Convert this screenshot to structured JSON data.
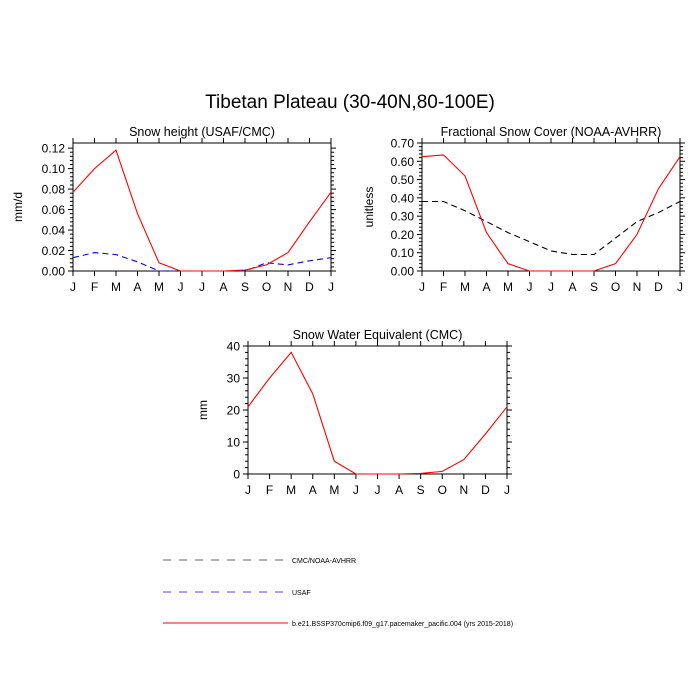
{
  "figure": {
    "title": "Tibetan Plateau (30-40N,80-100E)"
  },
  "legend": {
    "entries": [
      {
        "label": "CMC/NOAA-AVHRR",
        "color": "#000000",
        "dash": "dashed"
      },
      {
        "label": "USAF",
        "color": "#0000ff",
        "dash": "dashed"
      },
      {
        "label": "b.e21.BSSP370cmip6.f09_g17.pacemaker_pacific.004 (yrs 2015-2018)",
        "color": "#ff0000",
        "dash": "solid"
      }
    ]
  },
  "chart_data": [
    {
      "type": "line",
      "title": "Snow height (USAF/CMC)",
      "xlabel": "",
      "ylabel": "mm/d",
      "categories": [
        "J",
        "F",
        "M",
        "A",
        "M",
        "J",
        "J",
        "A",
        "S",
        "O",
        "N",
        "D",
        "J"
      ],
      "ylim": [
        0,
        0.125
      ],
      "yticks": [
        0.0,
        0.02,
        0.04,
        0.06,
        0.08,
        0.1,
        0.12
      ],
      "ytick_labels": [
        "0.00",
        "0.02",
        "0.04",
        "0.06",
        "0.08",
        "0.10",
        "0.12"
      ],
      "series": [
        {
          "name": "USAF",
          "color": "#0000ff",
          "dash": "dashed",
          "values": [
            0.013,
            0.018,
            0.016,
            0.009,
            0.0,
            0.0,
            0.0,
            0.0,
            0.0,
            0.008,
            0.006,
            0.01,
            0.013
          ]
        },
        {
          "name": "b.e21.BSSP370cmip6.f09_g17.pacemaker_pacific.004 (yrs 2015-2018)",
          "color": "#ff0000",
          "dash": "solid",
          "values": [
            0.077,
            0.1,
            0.118,
            0.056,
            0.008,
            0.0,
            0.0,
            0.0,
            0.001,
            0.006,
            0.018,
            0.048,
            0.077
          ]
        }
      ]
    },
    {
      "type": "line",
      "title": "Fractional Snow Cover (NOAA-AVHRR)",
      "xlabel": "",
      "ylabel": "unitless",
      "categories": [
        "J",
        "F",
        "M",
        "A",
        "M",
        "J",
        "J",
        "A",
        "S",
        "O",
        "N",
        "D",
        "J"
      ],
      "ylim": [
        0,
        0.7
      ],
      "yticks": [
        0.0,
        0.1,
        0.2,
        0.3,
        0.4,
        0.5,
        0.6,
        0.7
      ],
      "ytick_labels": [
        "0.00",
        "0.10",
        "0.20",
        "0.30",
        "0.40",
        "0.50",
        "0.60",
        "0.70"
      ],
      "series": [
        {
          "name": "CMC/NOAA-AVHRR",
          "color": "#000000",
          "dash": "dashed",
          "values": [
            0.38,
            0.38,
            0.33,
            0.27,
            0.21,
            0.16,
            0.11,
            0.09,
            0.09,
            0.18,
            0.27,
            0.32,
            0.38
          ]
        },
        {
          "name": "b.e21.BSSP370cmip6.f09_g17.pacemaker_pacific.004 (yrs 2015-2018)",
          "color": "#ff0000",
          "dash": "solid",
          "values": [
            0.625,
            0.635,
            0.52,
            0.21,
            0.04,
            0.0,
            0.0,
            0.0,
            0.0,
            0.04,
            0.2,
            0.45,
            0.625
          ]
        }
      ]
    },
    {
      "type": "line",
      "title": "Snow Water Equivalent (CMC)",
      "xlabel": "",
      "ylabel": "mm",
      "categories": [
        "J",
        "F",
        "M",
        "A",
        "M",
        "J",
        "J",
        "A",
        "S",
        "O",
        "N",
        "D",
        "J"
      ],
      "ylim": [
        0,
        40
      ],
      "yticks": [
        0,
        10,
        20,
        30,
        40
      ],
      "ytick_labels": [
        "0",
        "10",
        "20",
        "30",
        "40"
      ],
      "series": [
        {
          "name": "CMC/NOAA-AVHRR",
          "color": "#000000",
          "dash": "dashed",
          "values": [
            0,
            0,
            0,
            0,
            0,
            0,
            0,
            0,
            0,
            0,
            0,
            0,
            0
          ]
        },
        {
          "name": "b.e21.BSSP370cmip6.f09_g17.pacemaker_pacific.004 (yrs 2015-2018)",
          "color": "#ff0000",
          "dash": "solid",
          "values": [
            21.0,
            30.0,
            38.0,
            25.0,
            4.0,
            0.0,
            0.0,
            0.0,
            0.2,
            0.8,
            4.5,
            12.5,
            21.0
          ]
        }
      ]
    }
  ]
}
